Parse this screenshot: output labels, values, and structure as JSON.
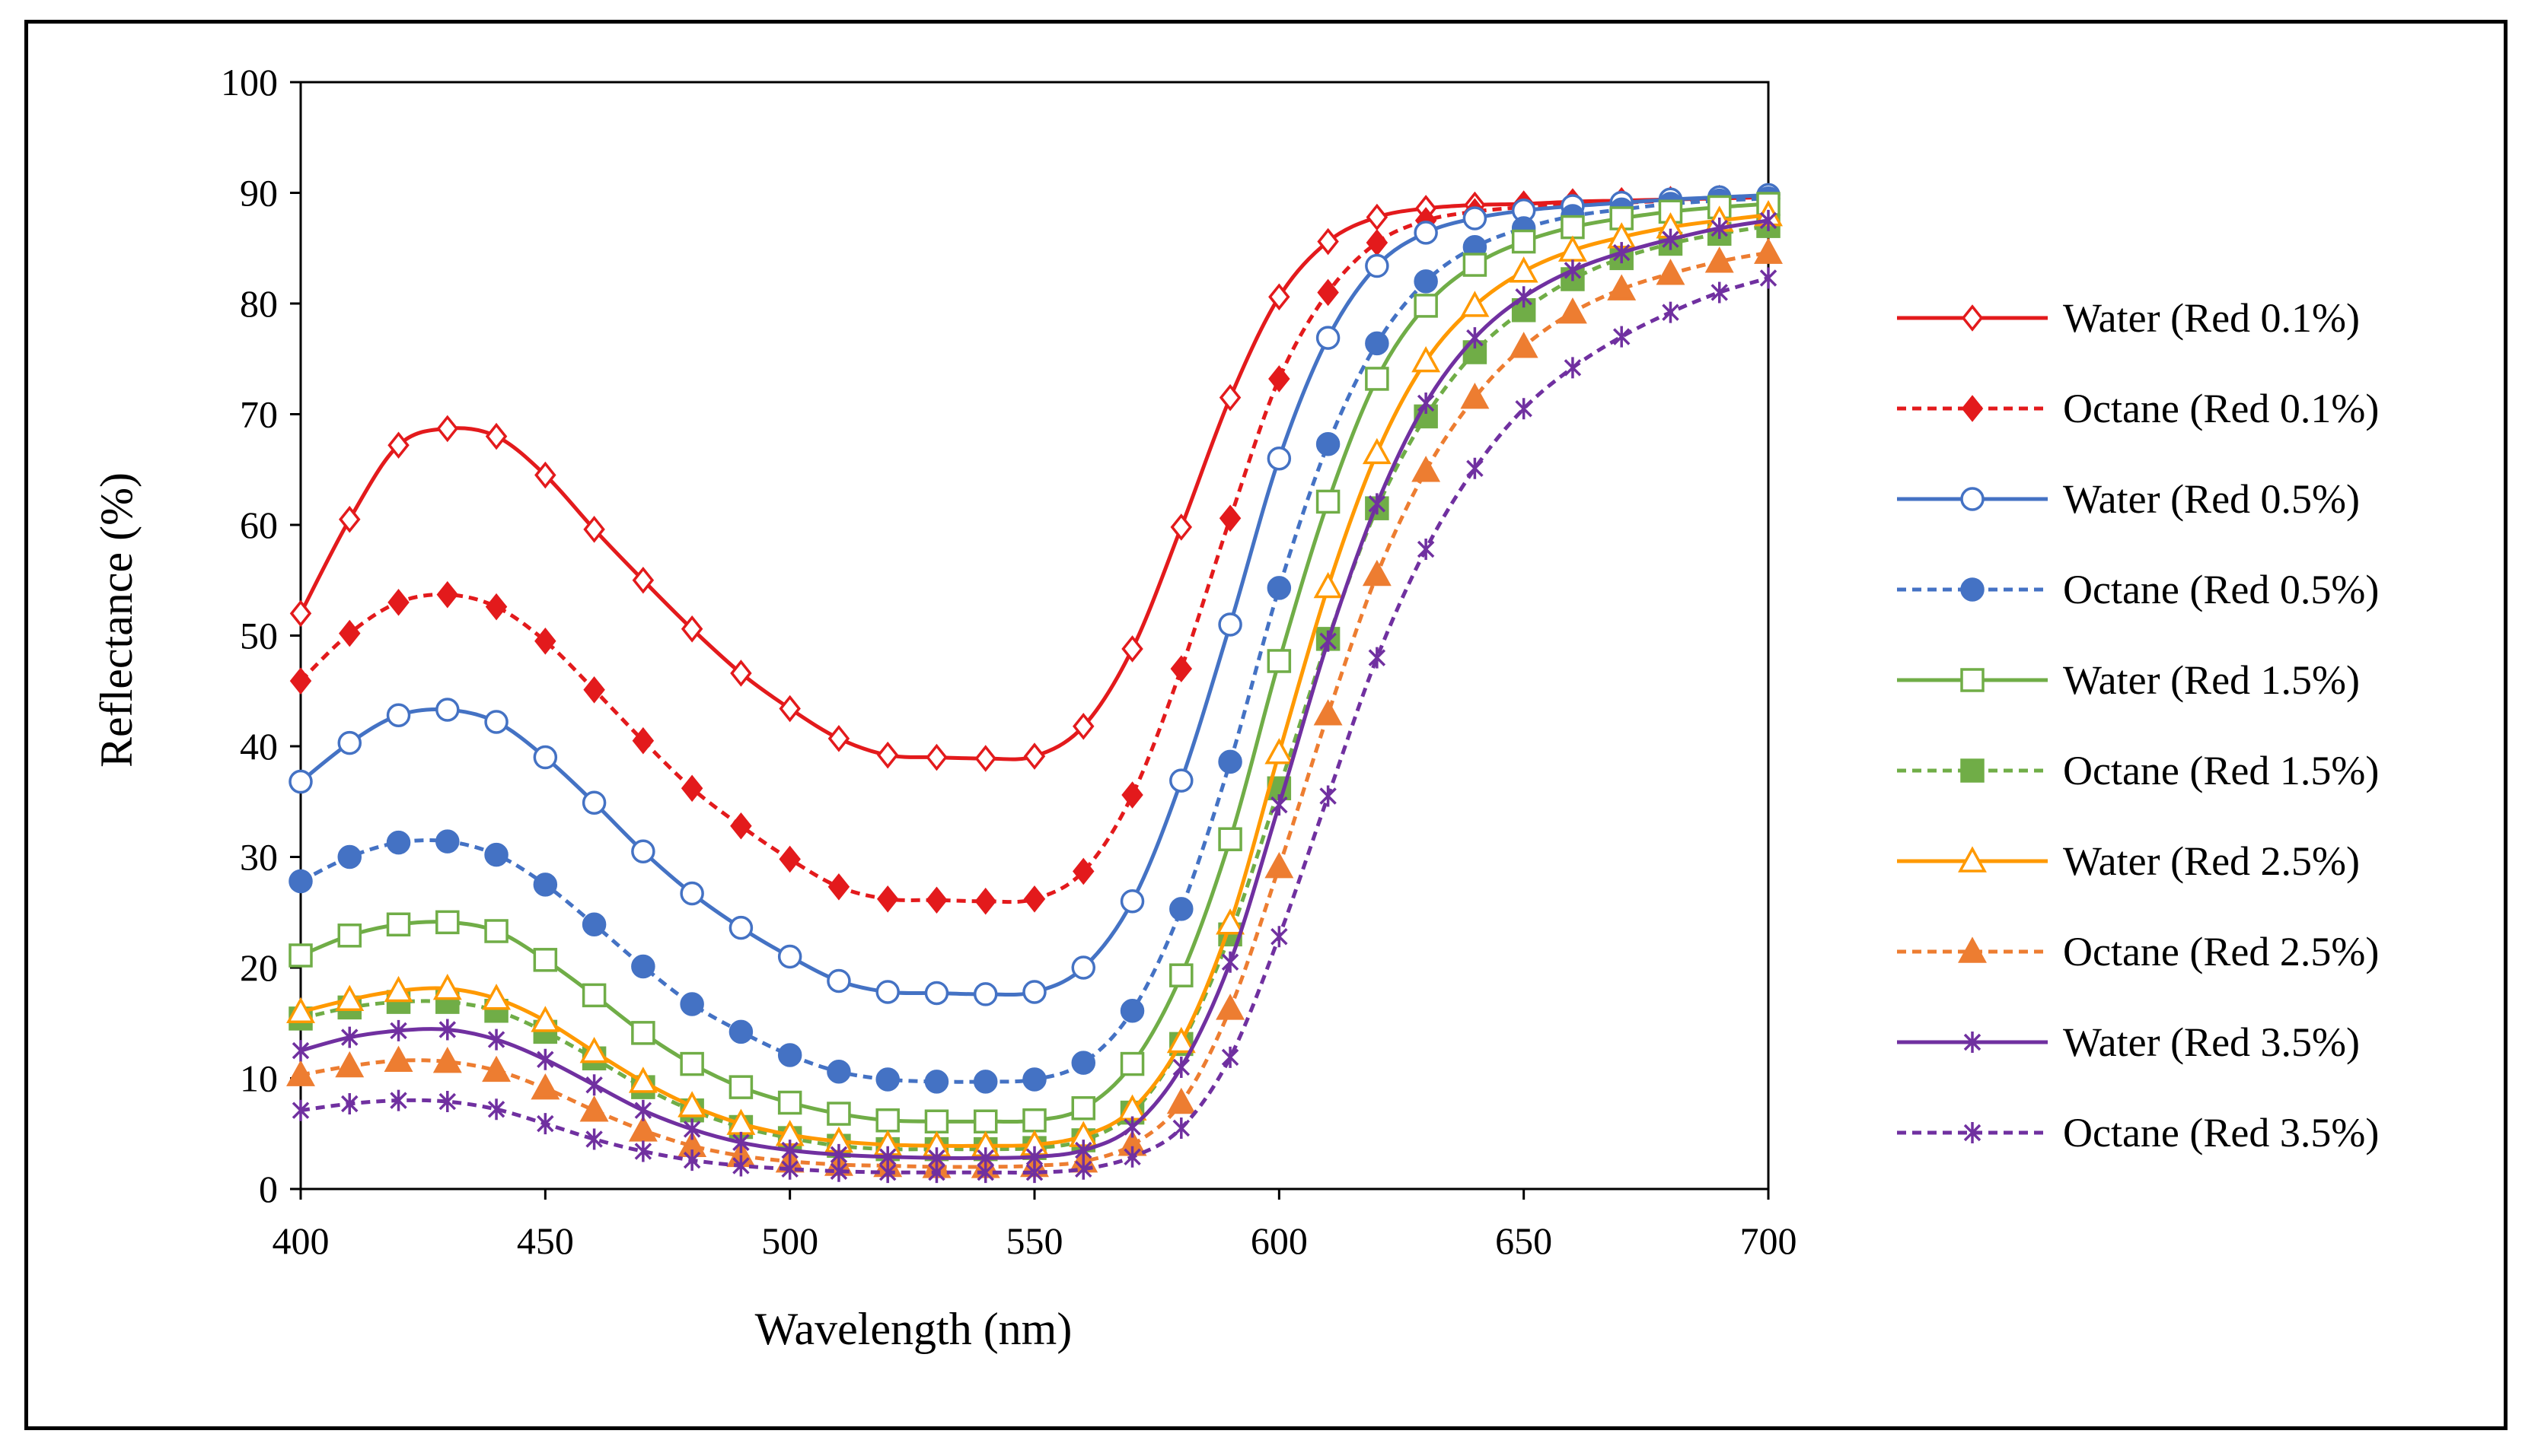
{
  "chart_data": {
    "type": "line",
    "title": "",
    "xlabel": "Wavelength (nm)",
    "ylabel": "Reflectance (%)",
    "xlim": [
      400,
      700
    ],
    "ylim": [
      0,
      100
    ],
    "xticks": [
      400,
      450,
      500,
      550,
      600,
      650,
      700
    ],
    "yticks": [
      0,
      10,
      20,
      30,
      40,
      50,
      60,
      70,
      80,
      90,
      100
    ],
    "grid": false,
    "legend_position": "right",
    "x": [
      400,
      410,
      420,
      430,
      440,
      450,
      460,
      470,
      480,
      490,
      500,
      510,
      520,
      530,
      540,
      550,
      560,
      570,
      580,
      590,
      600,
      610,
      620,
      630,
      640,
      650,
      660,
      670,
      680,
      690,
      700
    ],
    "series": [
      {
        "name": "Water (Red 0.1%)",
        "color": "#e31a1c",
        "dash": "solid",
        "marker": "diamond-open",
        "values": [
          52,
          60.5,
          67.2,
          68.7,
          68,
          64.5,
          59.6,
          55,
          50.6,
          46.6,
          43.4,
          40.7,
          39.2,
          39,
          38.9,
          39.1,
          41.8,
          48.8,
          59.8,
          71.5,
          80.6,
          85.6,
          87.8,
          88.6,
          88.9,
          89,
          89.2,
          89.3,
          89.4,
          89.5,
          89.6
        ]
      },
      {
        "name": "Octane (Red 0.1%)",
        "color": "#e31a1c",
        "dash": "dashed",
        "marker": "diamond-filled",
        "values": [
          45.9,
          50.2,
          53,
          53.7,
          52.6,
          49.5,
          45.1,
          40.5,
          36.2,
          32.8,
          29.8,
          27.3,
          26.2,
          26.1,
          26,
          26.2,
          28.7,
          35.6,
          47,
          60.6,
          73.2,
          81,
          85.5,
          87.5,
          88.3,
          88.7,
          88.9,
          89.1,
          89.3,
          89.5,
          89.6
        ]
      },
      {
        "name": "Water (Red 0.5%)",
        "color": "#4472c4",
        "dash": "solid",
        "marker": "circle-open",
        "values": [
          36.8,
          40.3,
          42.8,
          43.3,
          42.2,
          39,
          34.9,
          30.5,
          26.7,
          23.6,
          21,
          18.8,
          17.8,
          17.7,
          17.6,
          17.8,
          20,
          26,
          36.9,
          51,
          66,
          76.9,
          83.4,
          86.4,
          87.7,
          88.4,
          88.8,
          89.1,
          89.4,
          89.6,
          89.8
        ]
      },
      {
        "name": "Octane (Red 0.5%)",
        "color": "#4472c4",
        "dash": "dashed",
        "marker": "circle-filled",
        "values": [
          27.8,
          30,
          31.3,
          31.4,
          30.2,
          27.5,
          23.9,
          20.1,
          16.7,
          14.2,
          12.1,
          10.6,
          9.9,
          9.7,
          9.7,
          9.9,
          11.4,
          16.1,
          25.3,
          38.6,
          54.3,
          67.3,
          76.4,
          82,
          85.1,
          86.8,
          87.9,
          88.5,
          89,
          89.3,
          89.5
        ]
      },
      {
        "name": "Water (Red 1.5%)",
        "color": "#70ad47",
        "dash": "solid",
        "marker": "square-open",
        "values": [
          21.1,
          22.9,
          23.9,
          24.1,
          23.3,
          20.7,
          17.5,
          14.1,
          11.3,
          9.2,
          7.8,
          6.8,
          6.2,
          6.1,
          6.1,
          6.2,
          7.3,
          11.3,
          19.3,
          31.6,
          47.7,
          62.1,
          73.2,
          79.8,
          83.5,
          85.6,
          86.9,
          87.7,
          88.3,
          88.7,
          89
        ]
      },
      {
        "name": "Octane (Red 1.5%)",
        "color": "#70ad47",
        "dash": "dashed",
        "marker": "square-filled",
        "values": [
          15.4,
          16.4,
          16.9,
          16.9,
          16.1,
          14.2,
          11.8,
          9.2,
          7.1,
          5.6,
          4.6,
          3.9,
          3.6,
          3.6,
          3.6,
          3.7,
          4.4,
          6.9,
          13.1,
          23,
          36.2,
          49.7,
          61.5,
          69.8,
          75.6,
          79.4,
          82.2,
          84.1,
          85.4,
          86.3,
          87
        ]
      },
      {
        "name": "Water (Red 2.5%)",
        "color": "#ff9900",
        "dash": "solid",
        "marker": "triangle-open",
        "values": [
          16,
          17.1,
          17.9,
          18.1,
          17.2,
          15.2,
          12.4,
          9.7,
          7.5,
          5.9,
          4.9,
          4.3,
          4,
          3.9,
          3.9,
          4,
          4.8,
          7.2,
          13.3,
          24,
          39.4,
          54.4,
          66.5,
          74.8,
          79.8,
          82.9,
          84.8,
          86,
          86.9,
          87.5,
          88
        ]
      },
      {
        "name": "Octane (Red 2.5%)",
        "color": "#ed7d31",
        "dash": "dashed",
        "marker": "triangle-filled",
        "values": [
          10.3,
          11.1,
          11.6,
          11.5,
          10.7,
          9.1,
          7.1,
          5.3,
          3.9,
          3,
          2.5,
          2.2,
          2.1,
          2,
          2,
          2.1,
          2.5,
          4,
          7.8,
          16.3,
          29.1,
          42.9,
          55.5,
          64.9,
          71.5,
          76.1,
          79.2,
          81.3,
          82.7,
          83.8,
          84.6
        ]
      },
      {
        "name": "Water (Red 3.5%)",
        "color": "#7030a0",
        "dash": "solid",
        "marker": "asterisk",
        "values": [
          12.5,
          13.7,
          14.3,
          14.4,
          13.5,
          11.7,
          9.4,
          7.1,
          5.4,
          4.2,
          3.5,
          3.1,
          2.9,
          2.8,
          2.8,
          2.9,
          3.5,
          5.6,
          11,
          20.5,
          34.7,
          49.5,
          61.9,
          71,
          76.9,
          80.6,
          83,
          84.6,
          85.8,
          86.8,
          87.5
        ]
      },
      {
        "name": "Octane (Red 3.5%)",
        "color": "#7030a0",
        "dash": "dashed",
        "marker": "asterisk",
        "values": [
          7.1,
          7.7,
          8,
          7.9,
          7.2,
          5.9,
          4.5,
          3.4,
          2.6,
          2.1,
          1.8,
          1.6,
          1.5,
          1.5,
          1.5,
          1.5,
          1.8,
          2.9,
          5.5,
          11.9,
          22.8,
          35.5,
          48,
          57.8,
          65.1,
          70.5,
          74.2,
          77,
          79.2,
          81,
          82.3
        ]
      }
    ]
  }
}
